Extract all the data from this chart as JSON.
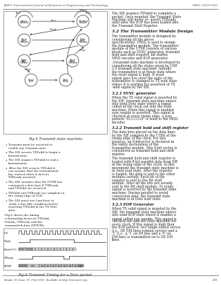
{
  "journal_header": "IJRET: International Journal of Research in Engineering and Technology",
  "issn": "ISSN: 2319-1163",
  "footer_text": "Volume: 01 Issue: 03 | Nov-2012, Available at http://www.ijret.org",
  "footer_page": "293",
  "fig5_caption": "Fig-5 Transmit state machine",
  "fig6_caption": "Fig-6 Transmit Timing for a Data packet",
  "bullet_points": [
    "Transmit must be asserted to enable any transmissions.",
    "The SIE asserts TXValid to begin a transmission.",
    "The SIE negates TXValid to end a transmission.",
    "After the SIE asserts TXValid it can assume that the transmission has started when it detects TXReady asserted.",
    "The SIE assumes that the UTMI has consumed a data byte if TXReady and TXValid are asserted.",
    "TXValid and TXReady are sampled on the rising edge of CLK.",
    "The SIE must use LineState to verify a bus Idle condition before asserting  TXValid in the TX Wait state."
  ],
  "timing_para": "Fig.6 shows the timing relationship between TXValid, DataIn, TXReady and the transmitted data (DP/DM).",
  "right_sections": [
    {
      "type": "body",
      "text": "The SIE negates TXValid to complete a packet. Once negated, the Transmit State Machine will never re- assert TXReady until after the EOP has been loaded into the Transmit Shift Register."
    },
    {
      "type": "heading",
      "text": "3.2 The Transmitter Module Design"
    },
    {
      "type": "body",
      "text": "The transmitter module is designed by considering all the above specifications. VHDL is used to design the transmitter module. The transmitter module of the UTMI consists of various blocks such as SYNC generator, transmit hold and shift register, bit stuffer, NRZI encoder and EOP generator."
    },
    {
      "type": "body",
      "text": "A transmit state machine is developed by considering all the states given by USB 2.0 transmit state machine. Initially the transmitter is at Reset state where the reset signal is high. If reset signal goes low state the state of the transmitter is changed to TX wait state where it is waiting for assertion of TX valid signal by the SIE."
    },
    {
      "type": "subheading",
      "text": "3.2.1 SYNC generator"
    },
    {
      "type": "body",
      "text": "When the TX valid signal is asserted by the SIE, transmit state machine enters into send Sync state where a signal called af the clock out side the state machine. When this signal is enabled sync enable is asserted. This signal is checked at every rising edge. a sync pattern \"01111110\" is send to the NRZI encoder."
    },
    {
      "type": "subheading",
      "text": "3.2.2 Transmit hold and shift register"
    },
    {
      "type": "body",
      "text": "The data byte placed on the data lines by the SIE sampled by the UTMI at the rising edge of the clock. For this purpose, an 8-bitvector is declared in the entity declaration of the transmitter module. This 8-bit vector is considered as transmit hold and shift register."
    },
    {
      "type": "body",
      "text": "The transmit hold and shift register is loaded with 8-bit parallel data from SIE at the rising edge of the clock. At this movement the transmit state machine is in Data load state. After the register is loaded, the data is sent to the other modules serially. Each bit of the register is sent to the Bit stuff module. After all the bits are serially sent to the Bit stuff module, Tx ready signal is asserted by the transmit state machine. During parallel to serial conversion data, the transmit state machine is in Data wait state."
    },
    {
      "type": "subheading",
      "text": "3.2.3 EOP Generator"
    },
    {
      "type": "body",
      "text": "When TX valid signal is negated by the SIE, the transmit state machine enters into send EOP state where it enables a signal called eop_enable. This signal is checked out side the state machine for every clock. If this signal is high then the EOP pattern: two single ended zeroes (i.e., DP, DM lines remain zeroes) and a '1' (i.e., a '1' on DP line and a '0' on DM line) is transmitted on to DP, DM lines."
    }
  ],
  "bg_color": "#ffffff",
  "text_color": "#222222",
  "heading_color": "#111111",
  "line_color": "#888888"
}
